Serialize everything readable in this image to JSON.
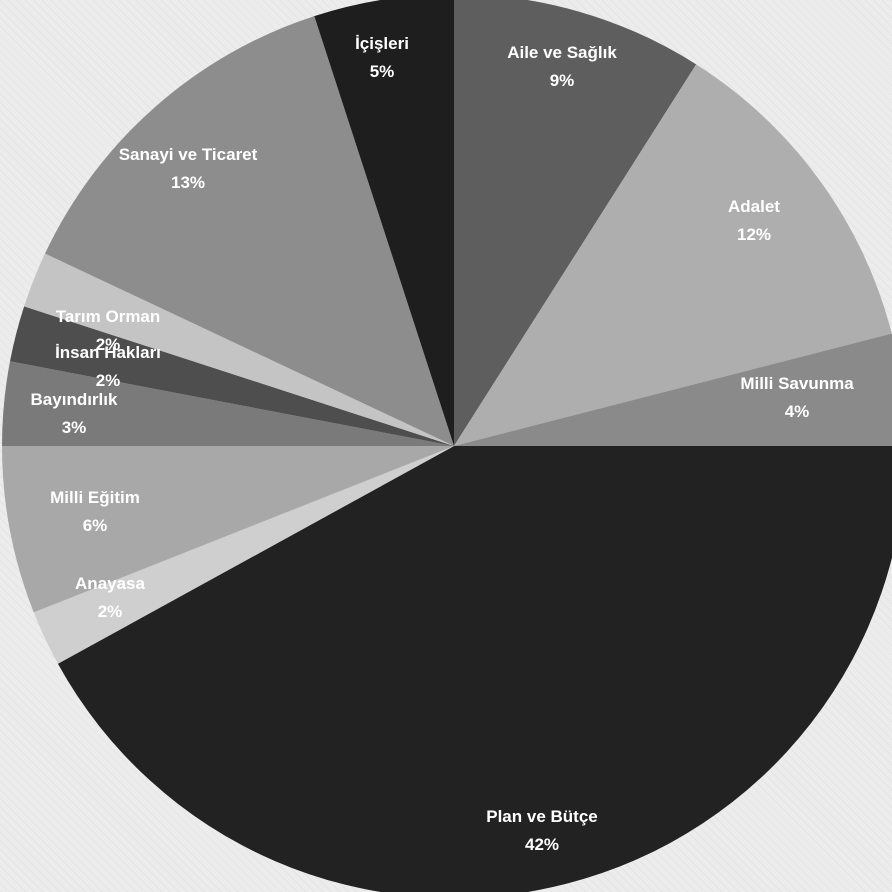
{
  "chart_data": {
    "type": "pie",
    "title": "",
    "start_angle_deg": 0,
    "direction": "clockwise",
    "slices": [
      {
        "name": "Aile ve Sağlık",
        "value": 9,
        "label": "9%",
        "color": "#5e5e5e"
      },
      {
        "name": "Adalet",
        "value": 12,
        "label": "12%",
        "color": "#aeaeae"
      },
      {
        "name": "Milli Savunma",
        "value": 4,
        "label": "4%",
        "color": "#8a8a8a"
      },
      {
        "name": "Plan ve Bütçe",
        "value": 42,
        "label": "42%",
        "color": "#222222"
      },
      {
        "name": "Anayasa",
        "value": 2,
        "label": "2%",
        "color": "#cfcfcf"
      },
      {
        "name": "Milli Eğitim",
        "value": 6,
        "label": "6%",
        "color": "#a8a8a8"
      },
      {
        "name": "Bayındırlık",
        "value": 3,
        "label": "3%",
        "color": "#7a7a7a"
      },
      {
        "name": "İnsan Hakları",
        "value": 2,
        "label": "2%",
        "color": "#4e4e4e"
      },
      {
        "name": "Tarım Orman",
        "value": 2,
        "label": "2%",
        "color": "#c4c4c4"
      },
      {
        "name": "Sanayi ve Ticaret",
        "value": 13,
        "label": "13%",
        "color": "#8d8d8d"
      },
      {
        "name": "İçişleri",
        "value": 5,
        "label": "5%",
        "color": "#1e1e1e"
      }
    ]
  }
}
